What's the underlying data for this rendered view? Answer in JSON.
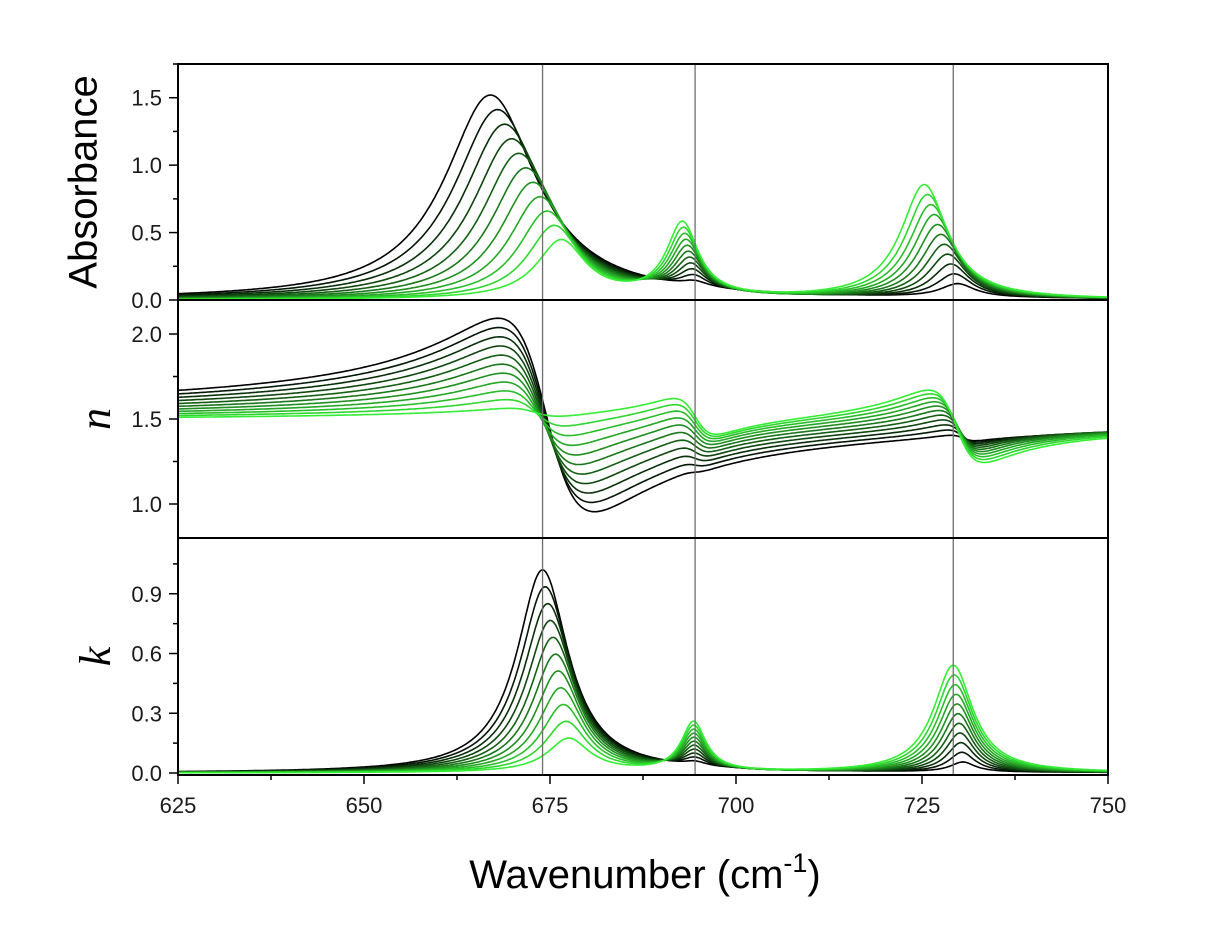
{
  "chart_data": {
    "type": "line",
    "x_label": "Wavenumber (cm",
    "x_label_sup": "-1",
    "x_label_end": ")",
    "xlim": [
      625,
      750
    ],
    "x_ticks": [
      "625",
      "650",
      "675",
      "700",
      "725",
      "750"
    ],
    "x_tick_values": [
      625,
      650,
      675,
      700,
      725,
      750
    ],
    "reference_lines_x": [
      674,
      694.5,
      729.2
    ],
    "n_series": 11,
    "color_start": "#000000",
    "color_end": "#33ee33",
    "panels": [
      {
        "name": "absorbance",
        "ylabel": "Absorbance",
        "ylabel_italic": false,
        "ylim": [
          0,
          1.75
        ],
        "y_ticks": [
          "0.0",
          "0.5",
          "1.0",
          "1.5"
        ],
        "y_tick_values": [
          0,
          0.5,
          1.0,
          1.5
        ],
        "kind": "absorption",
        "bands": [
          {
            "center_start": 667.0,
            "center_end": 676.5,
            "amp_start": 1.52,
            "amp_end": 0.43,
            "hwhm_start": 7.5,
            "hwhm_end": 4.0
          },
          {
            "center_start": 694.5,
            "center_end": 692.8,
            "amp_start": 0.04,
            "amp_end": 0.55,
            "hwhm_start": 2.2,
            "hwhm_end": 2.6
          },
          {
            "center_start": 729.8,
            "center_end": 725.3,
            "amp_start": 0.1,
            "amp_end": 0.85,
            "hwhm_start": 2.8,
            "hwhm_end": 3.8
          }
        ]
      },
      {
        "name": "refractive-index",
        "ylabel": "n",
        "ylabel_italic": true,
        "ylim": [
          0.8,
          2.2
        ],
        "y_ticks": [
          "1.0",
          "1.5",
          "2.0"
        ],
        "y_tick_values": [
          1.0,
          1.5,
          2.0
        ],
        "kind": "dispersion",
        "baseline_start": 1.52,
        "baseline_end": 1.48,
        "bands": [
          {
            "center_start": 674.5,
            "center_end": 673.0,
            "amp_start": 1.14,
            "amp_end": 0.06,
            "hwhm_start": 6.5,
            "hwhm_end": 4.0
          },
          {
            "center_start": 694.5,
            "center_end": 694.5,
            "amp_start": 0.02,
            "amp_end": 0.22,
            "hwhm_start": 2.0,
            "hwhm_end": 3.0
          },
          {
            "center_start": 730.5,
            "center_end": 729.6,
            "amp_start": 0.04,
            "amp_end": 0.43,
            "hwhm_start": 2.0,
            "hwhm_end": 3.8
          }
        ]
      },
      {
        "name": "extinction-coefficient",
        "ylabel": "k",
        "ylabel_italic": true,
        "ylim": [
          -0.01,
          1.18
        ],
        "y_ticks": [
          "0.0",
          "0.3",
          "0.6",
          "0.9"
        ],
        "y_tick_values": [
          0,
          0.3,
          0.6,
          0.9
        ],
        "kind": "absorption",
        "bands": [
          {
            "center_start": 674.0,
            "center_end": 677.5,
            "amp_start": 1.02,
            "amp_end": 0.17,
            "hwhm_start": 4.2,
            "hwhm_end": 3.4
          },
          {
            "center_start": 694.5,
            "center_end": 694.3,
            "amp_start": 0.02,
            "amp_end": 0.25,
            "hwhm_start": 1.8,
            "hwhm_end": 2.0
          },
          {
            "center_start": 730.5,
            "center_end": 729.2,
            "amp_start": 0.05,
            "amp_end": 0.54,
            "hwhm_start": 2.0,
            "hwhm_end": 3.2
          }
        ]
      }
    ]
  }
}
